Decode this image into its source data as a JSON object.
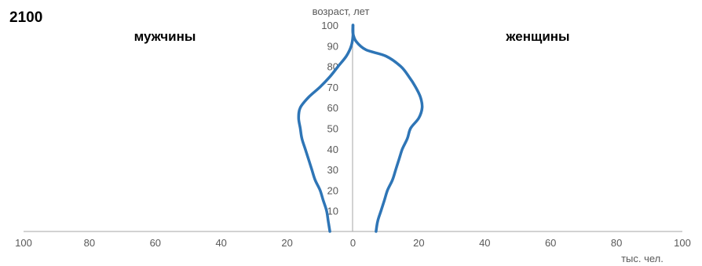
{
  "chart_data": {
    "type": "line",
    "title": "2100",
    "ylabel": "возраст, лет",
    "xlabel": "тыс. чел.",
    "xlim": [
      -100,
      100
    ],
    "ylim": [
      0,
      100
    ],
    "x_ticks": [
      -100,
      -80,
      -60,
      -40,
      -20,
      0,
      20,
      40,
      60,
      80,
      100
    ],
    "x_tick_labels": [
      "100",
      "80",
      "60",
      "40",
      "20",
      "0",
      "20",
      "40",
      "60",
      "80",
      "100"
    ],
    "y_ticks": [
      10,
      20,
      30,
      40,
      50,
      60,
      70,
      80,
      90,
      100
    ],
    "y_tick_labels": [
      "10",
      "20",
      "30",
      "40",
      "50",
      "60",
      "70",
      "80",
      "90",
      "100"
    ],
    "grid": false,
    "line_color": "#2E75B6",
    "series": [
      {
        "name": "мужчины",
        "points": [
          [
            -7,
            0
          ],
          [
            -7.5,
            5
          ],
          [
            -8,
            10
          ],
          [
            -9,
            15
          ],
          [
            -10,
            20
          ],
          [
            -11.5,
            25
          ],
          [
            -12.5,
            30
          ],
          [
            -13.5,
            35
          ],
          [
            -14.5,
            40
          ],
          [
            -15.5,
            45
          ],
          [
            -16,
            50
          ],
          [
            -16.5,
            55
          ],
          [
            -16,
            60
          ],
          [
            -13.5,
            65
          ],
          [
            -10,
            70
          ],
          [
            -7,
            75
          ],
          [
            -4.5,
            80
          ],
          [
            -2,
            85
          ],
          [
            -0.5,
            90
          ],
          [
            0,
            95
          ],
          [
            0,
            100
          ]
        ]
      },
      {
        "name": "женщины",
        "points": [
          [
            7,
            0
          ],
          [
            7.5,
            5
          ],
          [
            8.5,
            10
          ],
          [
            9.5,
            15
          ],
          [
            10.5,
            20
          ],
          [
            12,
            25
          ],
          [
            13,
            30
          ],
          [
            14,
            35
          ],
          [
            15,
            40
          ],
          [
            16.5,
            45
          ],
          [
            17.5,
            50
          ],
          [
            20,
            55
          ],
          [
            21,
            60
          ],
          [
            20.5,
            65
          ],
          [
            19,
            70
          ],
          [
            17,
            75
          ],
          [
            14.5,
            80
          ],
          [
            10,
            85
          ],
          [
            4,
            88
          ],
          [
            1,
            92
          ],
          [
            0,
            96
          ],
          [
            0,
            100
          ]
        ]
      }
    ]
  }
}
